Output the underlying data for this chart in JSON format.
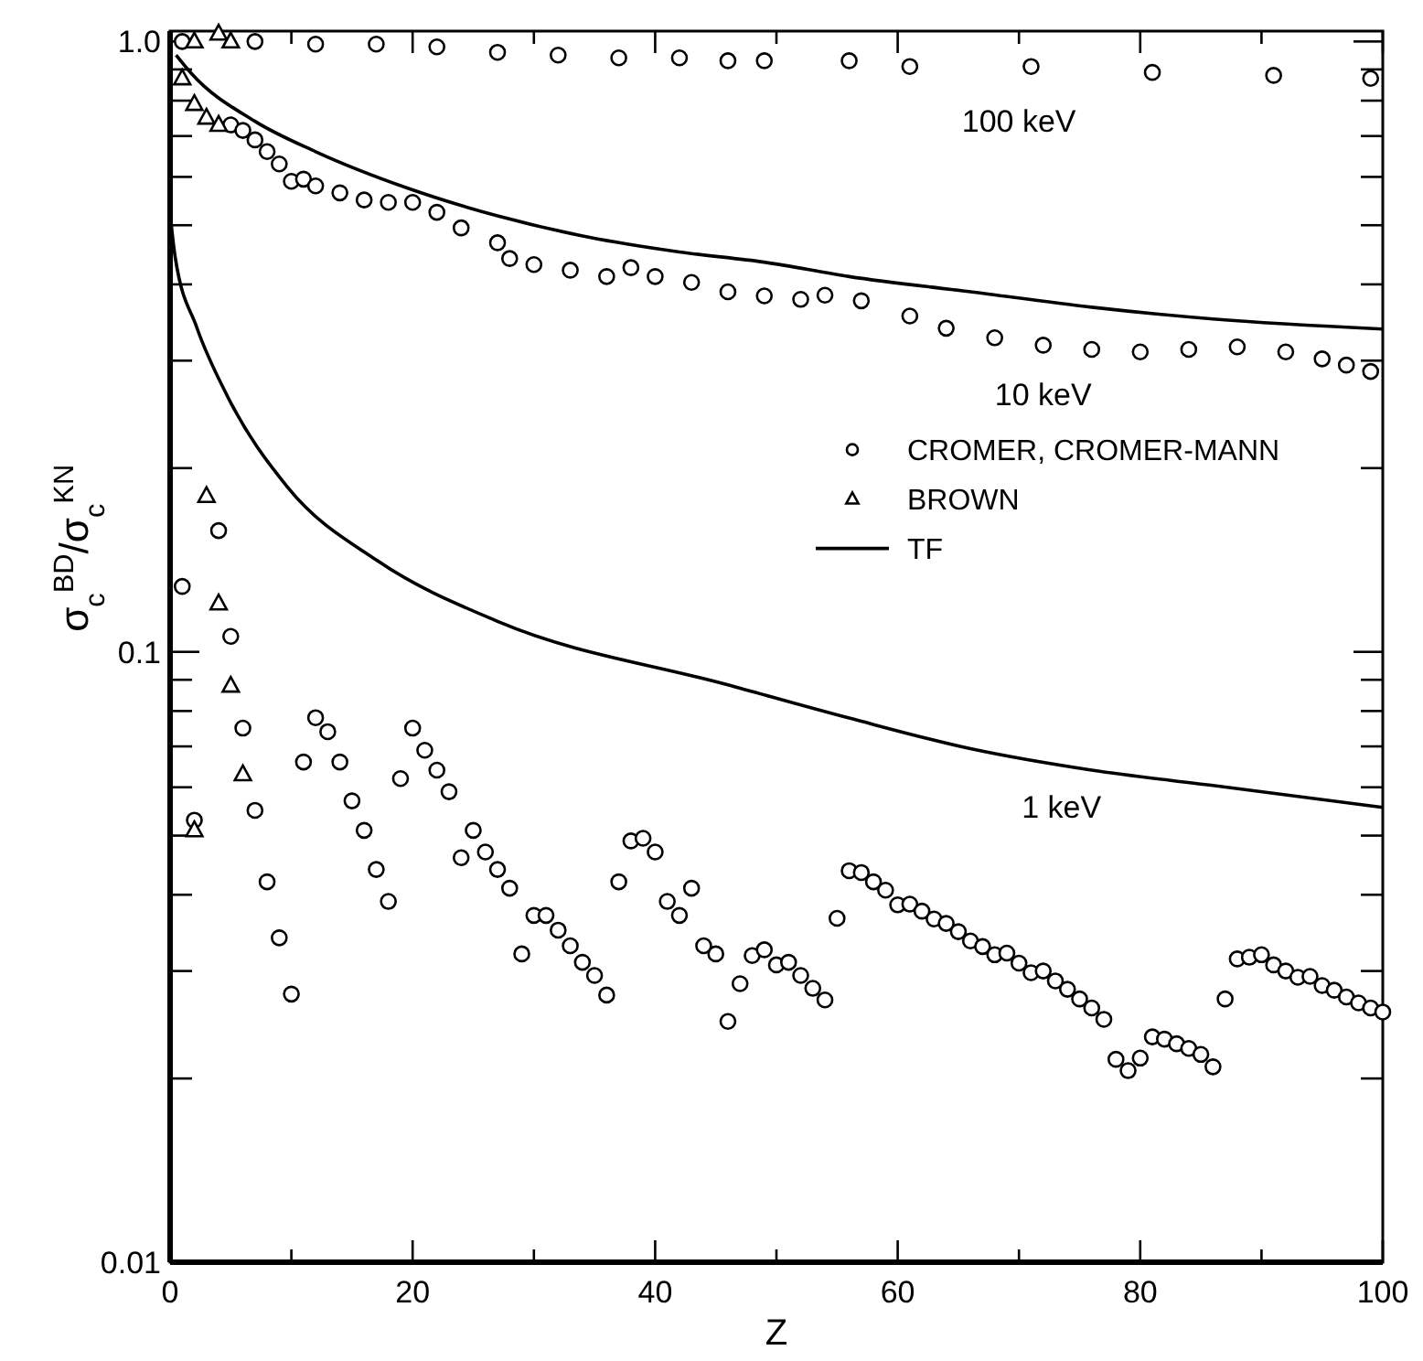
{
  "chart_data": {
    "type": "scatter",
    "xlabel": "Z",
    "ylabel": "σ$_{c}$$^{BD}$/σ$_{c}$$^{KN}$",
    "log": "y",
    "grid": false,
    "legend": "right",
    "xlim": [
      0,
      100
    ],
    "xticks": [
      0,
      {
        "value": 10,
        "label": null
      },
      20,
      {
        "value": 30,
        "label": null
      },
      40,
      {
        "value": 50,
        "label": null
      },
      60,
      {
        "value": 70,
        "label": null
      },
      80,
      {
        "value": 90,
        "label": null
      },
      100
    ],
    "ylim": [
      0.01,
      1.04
    ],
    "yticks": [
      0.01,
      {
        "value": 0.02,
        "label": null
      },
      {
        "value": 0.03,
        "label": null
      },
      {
        "value": 0.04,
        "label": null
      },
      {
        "value": 0.05,
        "label": null
      },
      {
        "value": 0.06,
        "label": null
      },
      {
        "value": 0.07,
        "label": null
      },
      {
        "value": 0.08,
        "label": null
      },
      {
        "value": 0.09,
        "label": null
      },
      0.1,
      {
        "value": 0.2,
        "label": null
      },
      {
        "value": 0.3,
        "label": null
      },
      {
        "value": 0.4,
        "label": null
      },
      {
        "value": 0.5,
        "label": null
      },
      {
        "value": 0.6,
        "label": null
      },
      {
        "value": 0.7,
        "label": null
      },
      {
        "value": 0.8,
        "label": null
      },
      {
        "value": 0.9,
        "label": null
      },
      {
        "value": 1,
        "label": "1.0"
      }
    ],
    "series": [
      {
        "name": "CROMER, CROMER-MANN",
        "marker": "circle",
        "color": "#000000",
        "x": [
          1,
          7,
          12,
          17,
          22,
          27,
          32,
          37,
          42,
          46,
          49,
          56,
          61,
          71,
          81,
          91,
          99
        ],
        "values": [
          1.0,
          1.0,
          0.99,
          0.99,
          0.98,
          0.96,
          0.95,
          0.94,
          0.94,
          0.93,
          0.93,
          0.93,
          0.91,
          0.91,
          0.89,
          0.88,
          0.87
        ]
      },
      {
        "marker": "circle",
        "color": "#000000",
        "x": [
          5,
          6,
          7,
          8,
          9,
          10,
          11,
          12,
          14,
          16,
          18,
          20,
          22,
          24,
          27,
          28,
          30,
          33,
          36,
          38,
          40,
          43,
          46,
          49,
          52,
          54,
          57,
          61,
          64,
          68,
          72,
          76,
          80,
          84,
          88,
          92,
          95,
          97,
          99
        ],
        "values": [
          0.73,
          0.715,
          0.69,
          0.66,
          0.63,
          0.59,
          0.595,
          0.58,
          0.565,
          0.55,
          0.545,
          0.545,
          0.525,
          0.495,
          0.468,
          0.441,
          0.431,
          0.422,
          0.412,
          0.426,
          0.412,
          0.403,
          0.389,
          0.383,
          0.378,
          0.384,
          0.376,
          0.355,
          0.339,
          0.327,
          0.318,
          0.313,
          0.31,
          0.313,
          0.316,
          0.31,
          0.302,
          0.295,
          0.288
        ]
      },
      {
        "marker": "circle",
        "color": "#000000",
        "x": [
          1,
          2,
          4,
          5,
          6,
          7,
          8,
          9,
          10,
          11,
          12,
          13,
          14,
          15,
          16,
          17,
          18,
          19,
          20,
          21,
          22,
          23,
          24,
          25,
          26,
          27,
          28,
          29,
          30,
          31,
          32,
          33,
          34,
          35,
          36,
          37,
          38,
          39,
          40,
          41,
          42,
          43,
          44,
          45,
          46,
          47,
          48,
          49,
          50,
          51,
          52,
          53,
          54,
          55,
          56,
          57,
          58,
          59,
          60,
          61,
          62,
          63,
          64,
          65,
          66,
          67,
          68,
          69,
          70,
          71,
          72,
          73,
          74,
          75,
          76,
          77,
          78,
          79,
          80,
          81,
          82,
          83,
          84,
          85,
          86,
          87,
          88,
          89,
          90,
          91,
          92,
          93,
          94,
          95,
          96,
          97,
          98,
          99,
          100
        ],
        "values": [
          0.128,
          0.053,
          0.158,
          0.106,
          0.075,
          0.055,
          0.042,
          0.034,
          0.0275,
          0.066,
          0.078,
          0.074,
          0.066,
          0.057,
          0.051,
          0.044,
          0.039,
          0.062,
          0.075,
          0.069,
          0.064,
          0.059,
          0.046,
          0.051,
          0.047,
          0.044,
          0.041,
          0.032,
          0.037,
          0.037,
          0.035,
          0.033,
          0.031,
          0.0295,
          0.0274,
          0.042,
          0.049,
          0.0495,
          0.047,
          0.039,
          0.037,
          0.041,
          0.033,
          0.032,
          0.0248,
          0.0286,
          0.0318,
          0.0325,
          0.0307,
          0.031,
          0.0295,
          0.0281,
          0.0269,
          0.0366,
          0.0438,
          0.0435,
          0.042,
          0.0407,
          0.0385,
          0.0386,
          0.0376,
          0.0365,
          0.0359,
          0.0348,
          0.0336,
          0.0329,
          0.0319,
          0.0321,
          0.0309,
          0.0298,
          0.03,
          0.0289,
          0.028,
          0.027,
          0.0261,
          0.025,
          0.0215,
          0.0206,
          0.0216,
          0.0234,
          0.0232,
          0.0228,
          0.0224,
          0.0219,
          0.0209,
          0.027,
          0.0314,
          0.0316,
          0.0319,
          0.0307,
          0.03,
          0.0293,
          0.0294,
          0.0284,
          0.0279,
          0.0272,
          0.0266,
          0.0261,
          0.0257
        ]
      },
      {
        "name": "BROWN",
        "marker": "triangle",
        "color": "#000000",
        "x": [
          2,
          4,
          5
        ],
        "values": [
          1.0,
          1.03,
          1.0
        ]
      },
      {
        "marker": "triangle",
        "color": "#000000",
        "x": [
          1,
          2,
          3,
          4
        ],
        "values": [
          0.87,
          0.79,
          0.75,
          0.73
        ]
      },
      {
        "marker": "triangle",
        "color": "#000000",
        "x": [
          2,
          3,
          4,
          5,
          6
        ],
        "values": [
          0.051,
          0.18,
          0.12,
          0.088,
          0.063
        ]
      },
      {
        "name": "TF",
        "type": "line",
        "marker": "none",
        "line_style": "solid",
        "color": "#000000",
        "x": [
          0.5,
          1.7,
          7,
          12,
          19.6,
          27,
          34.5,
          42,
          49,
          56,
          66,
          76,
          86,
          100
        ],
        "values": [
          0.95,
          0.889,
          0.74,
          0.66,
          0.575,
          0.518,
          0.478,
          0.452,
          0.435,
          0.412,
          0.389,
          0.367,
          0.351,
          0.338
        ]
      },
      {
        "type": "line",
        "marker": "none",
        "line_style": "solid",
        "color": "#000000",
        "x": [
          0.1,
          0.4,
          2.2,
          4.7,
          9.7,
          17.1,
          27.1,
          46,
          56,
          66,
          76,
          86,
          100
        ],
        "values": [
          0.5,
          0.446,
          0.34,
          0.263,
          0.186,
          0.141,
          0.112,
          0.0883,
          0.0779,
          0.0694,
          0.064,
          0.0604,
          0.0556
        ]
      }
    ],
    "annotations": [
      "100 keV",
      "10 keV",
      "1 keV"
    ]
  }
}
